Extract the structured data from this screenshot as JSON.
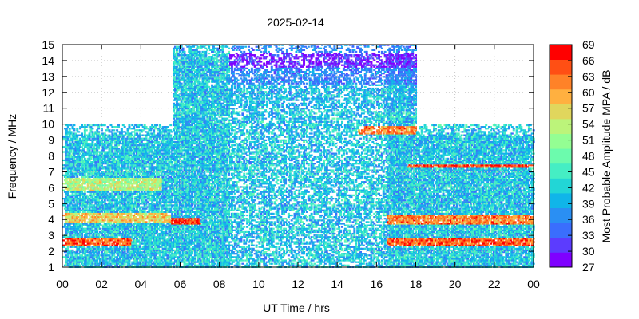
{
  "chart_data": {
    "type": "heatmap",
    "title": "2025-02-14",
    "xlabel": "UT Time / hrs",
    "ylabel": "Frequency / MHz",
    "colorbar_label": "Most Probable Amplitude MPA / dB",
    "x_ticks": [
      "00",
      "02",
      "04",
      "06",
      "08",
      "10",
      "12",
      "14",
      "16",
      "18",
      "20",
      "22",
      "00"
    ],
    "y_ticks": [
      "1",
      "2",
      "3",
      "4",
      "5",
      "6",
      "7",
      "8",
      "9",
      "10",
      "11",
      "12",
      "13",
      "14",
      "15"
    ],
    "colorbar_ticks": [
      "27",
      "30",
      "33",
      "36",
      "39",
      "42",
      "45",
      "48",
      "51",
      "54",
      "57",
      "60",
      "63",
      "66",
      "69"
    ],
    "xlim": [
      0,
      24
    ],
    "ylim": [
      1,
      15
    ],
    "clim": [
      27,
      69
    ],
    "grid": true,
    "colorbar_colors": [
      "#7f00ff",
      "#5c3cfe",
      "#3a6efd",
      "#2a8ff3",
      "#10b5e9",
      "#22d6d6",
      "#45eec4",
      "#6cfbad",
      "#94fe93",
      "#bcf47a",
      "#e0d65d",
      "#ffb040",
      "#ff8228",
      "#ff4f14",
      "#ff0000"
    ],
    "frequency_extent": [
      {
        "t_start": 0,
        "t_end": 5.6,
        "f_max": 10
      },
      {
        "t_start": 5.6,
        "t_end": 8.8,
        "f_max": 15
      },
      {
        "t_start": 8.8,
        "t_end": 18.0,
        "f_max": 15
      },
      {
        "t_start": 18.0,
        "t_end": 24,
        "f_max": 10
      }
    ],
    "bands": [
      {
        "t_start": 0,
        "t_end": 3.5,
        "f_low": 2.3,
        "f_high": 2.8,
        "amplitude": 64
      },
      {
        "t_start": 0,
        "t_end": 5.5,
        "f_low": 3.8,
        "f_high": 4.4,
        "amplitude": 57
      },
      {
        "t_start": 0,
        "t_end": 5.0,
        "f_low": 5.8,
        "f_high": 6.6,
        "amplitude": 53
      },
      {
        "t_start": 5.5,
        "t_end": 7.0,
        "f_low": 3.7,
        "f_high": 4.1,
        "amplitude": 66
      },
      {
        "t_start": 8.5,
        "t_end": 18.0,
        "f_low": 13.5,
        "f_high": 14.5,
        "amplitude": 30
      },
      {
        "t_start": 8.5,
        "t_end": 18.0,
        "f_low": 11.0,
        "f_high": 12.5,
        "amplitude": 40
      },
      {
        "t_start": 15.0,
        "t_end": 18.0,
        "f_low": 9.4,
        "f_high": 9.9,
        "amplitude": 62
      },
      {
        "t_start": 17.5,
        "t_end": 24.0,
        "f_low": 7.2,
        "f_high": 7.5,
        "amplitude": 66
      },
      {
        "t_start": 16.5,
        "t_end": 24.0,
        "f_low": 3.7,
        "f_high": 4.3,
        "amplitude": 62
      },
      {
        "t_start": 16.5,
        "t_end": 24.0,
        "f_low": 2.3,
        "f_high": 2.8,
        "amplitude": 64
      }
    ]
  }
}
